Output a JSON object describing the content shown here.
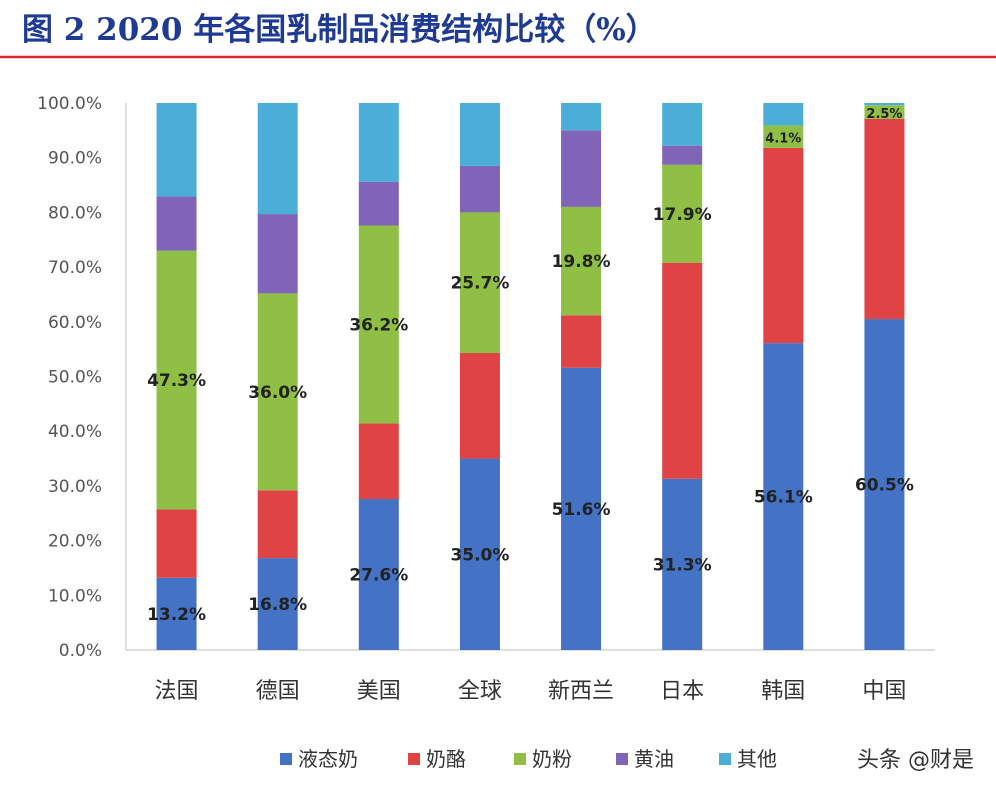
{
  "header": {
    "title": "图 2 2020 年各国乳制品消费结构比较（%）"
  },
  "watermark": "头条 @财是",
  "colors": {
    "title": "#1f3a93",
    "rule": "#d9262c",
    "axis": "#bfbfbf"
  },
  "chart_data": {
    "type": "bar",
    "stacked": true,
    "categories": [
      "法国",
      "德国",
      "美国",
      "全球",
      "新西兰",
      "日本",
      "韩国",
      "中国"
    ],
    "y_ticks": [
      "0.0%",
      "10.0%",
      "20.0%",
      "30.0%",
      "40.0%",
      "50.0%",
      "60.0%",
      "70.0%",
      "80.0%",
      "90.0%",
      "100.0%"
    ],
    "ylim": [
      0,
      100
    ],
    "legend_position": "bottom",
    "grid": false,
    "series": [
      {
        "name": "液态奶",
        "color": "#4472c4",
        "values": [
          13.2,
          16.8,
          27.6,
          35.0,
          51.6,
          31.3,
          56.1,
          60.5
        ]
      },
      {
        "name": "奶酪",
        "color": "#e04343",
        "values": [
          12.5,
          12.4,
          13.8,
          19.3,
          9.6,
          39.5,
          35.7,
          36.6
        ]
      },
      {
        "name": "奶粉",
        "color": "#8fbf45",
        "values": [
          47.3,
          36.0,
          36.2,
          25.7,
          19.8,
          17.9,
          4.1,
          2.5
        ]
      },
      {
        "name": "黄油",
        "color": "#8064b8",
        "values": [
          9.9,
          14.5,
          8.0,
          8.5,
          14.0,
          3.5,
          0,
          0
        ]
      },
      {
        "name": "其他",
        "color": "#4aaed6",
        "values": [
          17.1,
          20.3,
          14.4,
          11.5,
          5.0,
          7.8,
          4.1,
          0.4
        ]
      }
    ],
    "data_labels": [
      {
        "category": "法国",
        "series": "液态奶",
        "text": "13.2%"
      },
      {
        "category": "法国",
        "series": "奶粉",
        "text": "47.3%"
      },
      {
        "category": "德国",
        "series": "液态奶",
        "text": "16.8%"
      },
      {
        "category": "德国",
        "series": "奶粉",
        "text": "36.0%"
      },
      {
        "category": "美国",
        "series": "液态奶",
        "text": "27.6%"
      },
      {
        "category": "美国",
        "series": "奶粉",
        "text": "36.2%"
      },
      {
        "category": "全球",
        "series": "液态奶",
        "text": "35.0%"
      },
      {
        "category": "全球",
        "series": "奶粉",
        "text": "25.7%"
      },
      {
        "category": "新西兰",
        "series": "液态奶",
        "text": "51.6%"
      },
      {
        "category": "新西兰",
        "series": "奶粉",
        "text": "19.8%"
      },
      {
        "category": "日本",
        "series": "液态奶",
        "text": "31.3%"
      },
      {
        "category": "日本",
        "series": "奶粉",
        "text": "17.9%"
      },
      {
        "category": "韩国",
        "series": "液态奶",
        "text": "56.1%"
      },
      {
        "category": "韩国",
        "series": "奶粉",
        "text": "4.1%"
      },
      {
        "category": "中国",
        "series": "液态奶",
        "text": "60.5%"
      },
      {
        "category": "中国",
        "series": "奶粉",
        "text": "2.5%"
      }
    ]
  }
}
